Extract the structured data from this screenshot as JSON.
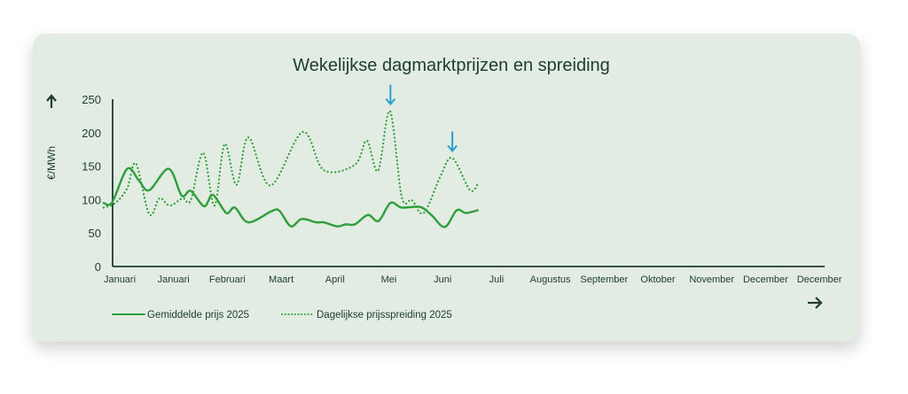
{
  "chart_data": {
    "type": "line",
    "title": "Wekelijkse dagmarktprijzen en spreiding",
    "ylabel": "€/MWh",
    "ylim": [
      0,
      250
    ],
    "yticks": [
      0,
      50,
      100,
      150,
      200,
      250
    ],
    "categories": [
      "Januari",
      "Januari",
      "Februari",
      "Maart",
      "April",
      "Mei",
      "Juni",
      "Juli",
      "Augustus",
      "September",
      "Oktober",
      "November",
      "December",
      "December"
    ],
    "grid": false,
    "legend_placement": "bottom-left",
    "series": [
      {
        "name": "Gemiddelde prijs 2025",
        "style": "solid",
        "color": "#2e9e3a",
        "points": [
          [
            -0.3,
            95
          ],
          [
            -0.14,
            96
          ],
          [
            0.14,
            146
          ],
          [
            0.36,
            128
          ],
          [
            0.55,
            114
          ],
          [
            0.91,
            146
          ],
          [
            1.15,
            106
          ],
          [
            1.32,
            113
          ],
          [
            1.57,
            90
          ],
          [
            1.73,
            107
          ],
          [
            1.98,
            80
          ],
          [
            2.14,
            88
          ],
          [
            2.39,
            66
          ],
          [
            2.83,
            83
          ],
          [
            2.97,
            83
          ],
          [
            3.18,
            60
          ],
          [
            3.38,
            71
          ],
          [
            3.65,
            66
          ],
          [
            3.79,
            66
          ],
          [
            4.04,
            60
          ],
          [
            4.2,
            63
          ],
          [
            4.37,
            63
          ],
          [
            4.61,
            77
          ],
          [
            4.81,
            68
          ],
          [
            5.03,
            95
          ],
          [
            5.24,
            88
          ],
          [
            5.58,
            89
          ],
          [
            5.79,
            77
          ],
          [
            6.04,
            59
          ],
          [
            6.26,
            84
          ],
          [
            6.43,
            80
          ],
          [
            6.65,
            84
          ]
        ]
      },
      {
        "name": "Dagelijkse prijsspreiding 2025",
        "style": "dotted",
        "color": "#2e9e3a",
        "points": [
          [
            -0.3,
            88
          ],
          [
            -0.08,
            95
          ],
          [
            0.14,
            117
          ],
          [
            0.3,
            154
          ],
          [
            0.55,
            78
          ],
          [
            0.74,
            102
          ],
          [
            0.93,
            91
          ],
          [
            1.17,
            102
          ],
          [
            1.32,
            99
          ],
          [
            1.55,
            170
          ],
          [
            1.76,
            91
          ],
          [
            1.95,
            183
          ],
          [
            2.17,
            122
          ],
          [
            2.39,
            193
          ],
          [
            2.8,
            121
          ],
          [
            3.4,
            201
          ],
          [
            3.79,
            144
          ],
          [
            4.37,
            152
          ],
          [
            4.59,
            188
          ],
          [
            4.8,
            143
          ],
          [
            5.02,
            232
          ],
          [
            5.24,
            104
          ],
          [
            5.43,
            99
          ],
          [
            5.65,
            80
          ],
          [
            5.96,
            135
          ],
          [
            6.18,
            162
          ],
          [
            6.51,
            114
          ],
          [
            6.67,
            126
          ]
        ]
      }
    ],
    "annotations": [
      {
        "type": "arrow-down",
        "x": 5.03,
        "y": 232,
        "color": "#2a9fd6"
      },
      {
        "type": "arrow-down",
        "x": 6.18,
        "y": 162,
        "color": "#2a9fd6"
      }
    ]
  },
  "colors": {
    "background": "#e2ece2",
    "text": "#1e3b34",
    "axis": "#1e3b34",
    "accent": "#2e9e3a",
    "annotation": "#2a9fd6"
  }
}
